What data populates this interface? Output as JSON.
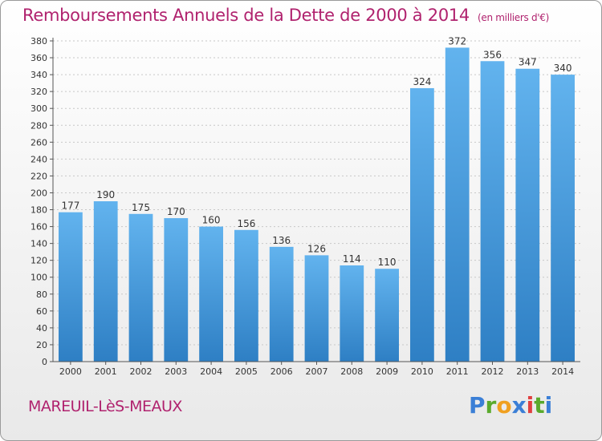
{
  "header": {
    "title": "Remboursements Annuels de la Dette de 2000 à 2014",
    "subtitle": "(en milliers d'€)"
  },
  "footer": {
    "place": "MAREUIL-LèS-MEAUX",
    "logo": [
      "P",
      "r",
      "o",
      "x",
      "i",
      "t",
      "i"
    ]
  },
  "colors": {
    "bar": "#4a9fe0",
    "bar_light": "#62b3ee",
    "bar_dark": "#2e7fc4",
    "title": "#b0226e",
    "logo": [
      "#3b7fd6",
      "#5aaa2c",
      "#f0a020",
      "#3b7fd6",
      "#e04040",
      "#5aaa2c",
      "#3b7fd6"
    ]
  },
  "chart_data": {
    "type": "bar",
    "categories": [
      "2000",
      "2001",
      "2002",
      "2003",
      "2004",
      "2005",
      "2006",
      "2007",
      "2008",
      "2009",
      "2010",
      "2011",
      "2012",
      "2013",
      "2014"
    ],
    "values": [
      177,
      190,
      175,
      170,
      160,
      156,
      136,
      126,
      114,
      110,
      324,
      372,
      356,
      347,
      340
    ],
    "title": "Remboursements Annuels de la Dette de 2000 à 2014",
    "xlabel": "",
    "ylabel": "",
    "ylim": [
      0,
      380
    ],
    "yticks": [
      0,
      20,
      40,
      60,
      80,
      100,
      120,
      140,
      160,
      180,
      200,
      220,
      240,
      260,
      280,
      300,
      320,
      340,
      360,
      380
    ],
    "grid": true,
    "legend": "none"
  }
}
